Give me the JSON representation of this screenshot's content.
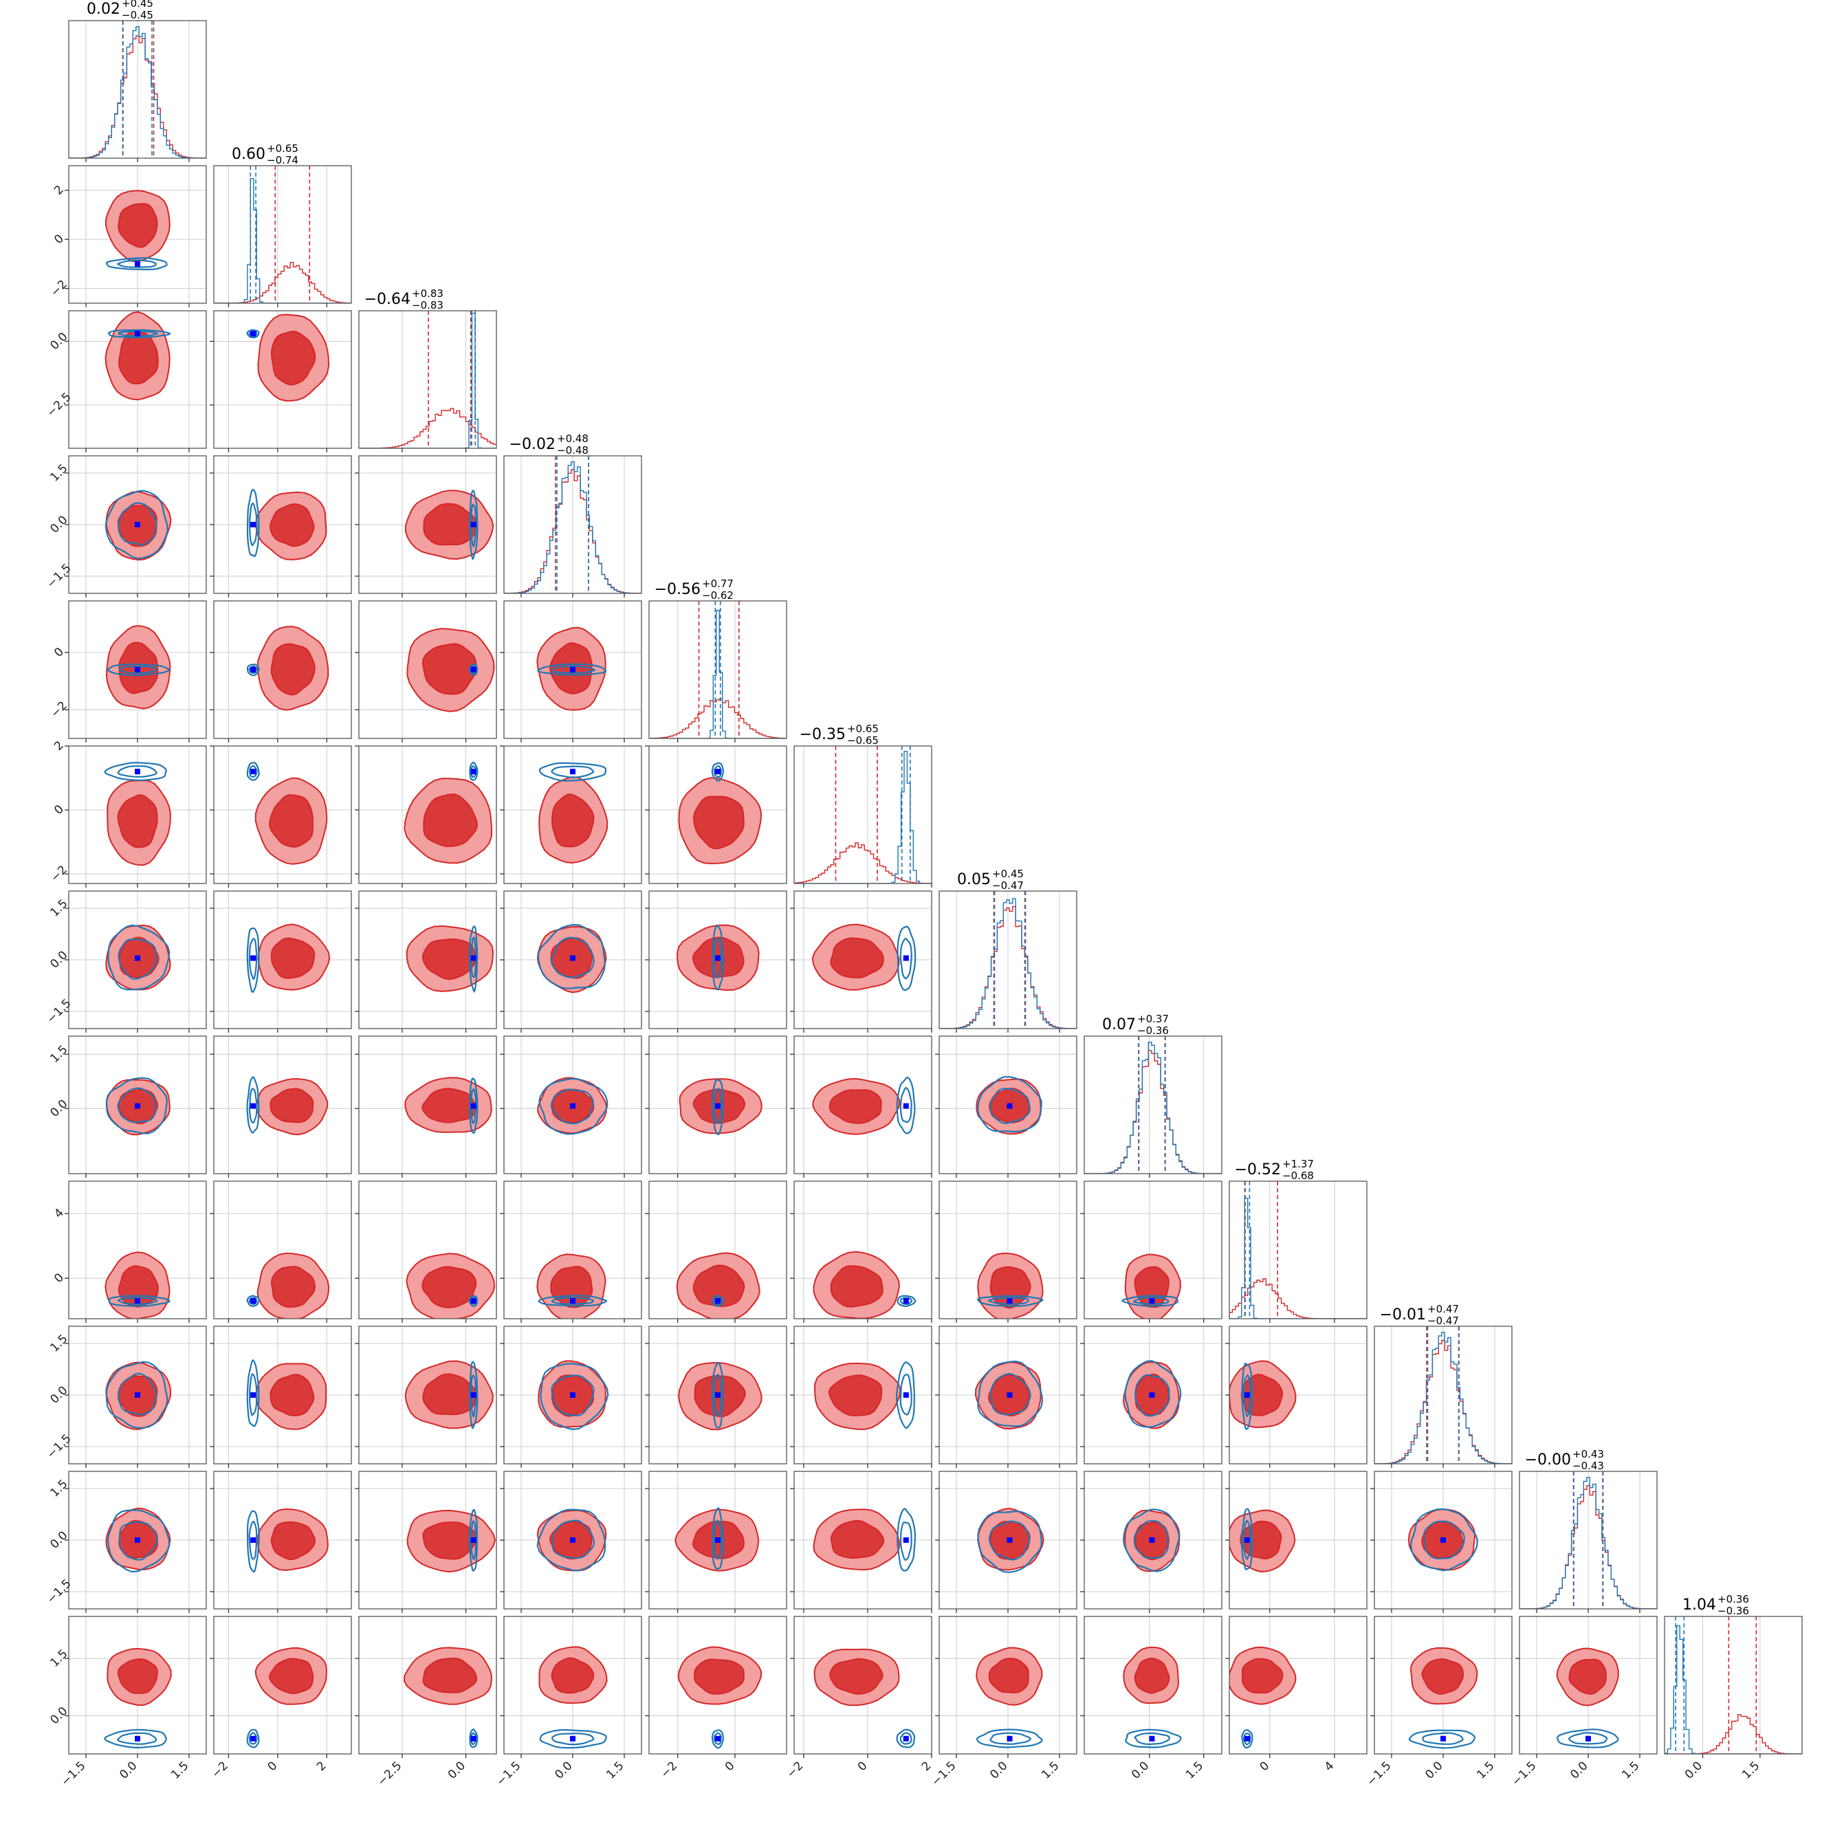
{
  "figure": {
    "type": "corner_plot",
    "n_parameters": 12
  },
  "chart_data": {
    "type": "corner",
    "series": [
      {
        "name": "",
        "color": "#d62728",
        "kind": "filled contours (broad posterior)"
      },
      {
        "name": "",
        "color": "#1f77b4",
        "kind": "line contours (narrow posterior)"
      }
    ],
    "truth_marker_color": "#0000ff",
    "grid": true,
    "parameters": [
      {
        "title": "0.02",
        "plus": "+0.45",
        "minus": "−0.45",
        "range": [
          -2.0,
          2.0
        ],
        "ticks": [
          -1.5,
          0.0,
          1.5
        ],
        "tick_labels": [
          "−1.5",
          "0.0",
          "1.5"
        ],
        "red": {
          "mean": 0.02,
          "sd": 0.45
        },
        "blue": {
          "mean": 0.0,
          "sd": 0.42
        }
      },
      {
        "title": "0.60",
        "plus": "+0.65",
        "minus": "−0.74",
        "range": [
          -2.6,
          3.0
        ],
        "ticks": [
          -2,
          0,
          2
        ],
        "tick_labels": [
          "−2",
          "0",
          "2"
        ],
        "red": {
          "mean": 0.6,
          "sd": 0.7
        },
        "blue": {
          "mean": -1.0,
          "sd": 0.11
        }
      },
      {
        "title": "−0.64",
        "plus": "+0.83",
        "minus": "−0.83",
        "range": [
          -4.2,
          1.2
        ],
        "ticks": [
          -2.5,
          0.0
        ],
        "tick_labels": [
          "−2.5",
          "0.0"
        ],
        "red": {
          "mean": -0.64,
          "sd": 0.83
        },
        "blue": {
          "mean": 0.3,
          "sd": 0.07
        }
      },
      {
        "title": "−0.02",
        "plus": "+0.48",
        "minus": "−0.48",
        "range": [
          -2.0,
          2.0
        ],
        "ticks": [
          -1.5,
          0.0,
          1.5
        ],
        "tick_labels": [
          "−1.5",
          "0.0",
          "1.5"
        ],
        "red": {
          "mean": -0.02,
          "sd": 0.48
        },
        "blue": {
          "mean": 0.0,
          "sd": 0.46
        }
      },
      {
        "title": "−0.56",
        "plus": "+0.77",
        "minus": "−0.62",
        "range": [
          -3.0,
          1.8
        ],
        "ticks": [
          -2,
          0
        ],
        "tick_labels": [
          "−2",
          "0"
        ],
        "red": {
          "mean": -0.56,
          "sd": 0.7
        },
        "blue": {
          "mean": -0.6,
          "sd": 0.09
        }
      },
      {
        "title": "−0.35",
        "plus": "+0.65",
        "minus": "−0.65",
        "range": [
          -2.3,
          2.0
        ],
        "ticks": [
          -2,
          0,
          2
        ],
        "tick_labels": [
          "−2",
          "0",
          "2"
        ],
        "red": {
          "mean": -0.35,
          "sd": 0.65
        },
        "blue": {
          "mean": 1.2,
          "sd": 0.13
        }
      },
      {
        "title": "0.05",
        "plus": "+0.45",
        "minus": "−0.47",
        "range": [
          -2.0,
          2.0
        ],
        "ticks": [
          -1.5,
          0.0,
          1.5
        ],
        "tick_labels": [
          "−1.5",
          "0.0",
          "1.5"
        ],
        "red": {
          "mean": 0.05,
          "sd": 0.46
        },
        "blue": {
          "mean": 0.05,
          "sd": 0.44
        }
      },
      {
        "title": "0.07",
        "plus": "+0.37",
        "minus": "−0.36",
        "range": [
          -1.8,
          2.0
        ],
        "ticks": [
          0.0,
          1.5
        ],
        "tick_labels": [
          "0.0",
          "1.5"
        ],
        "red": {
          "mean": 0.07,
          "sd": 0.37
        },
        "blue": {
          "mean": 0.07,
          "sd": 0.36
        }
      },
      {
        "title": "−0.52",
        "plus": "+1.37",
        "minus": "−0.68",
        "range": [
          -2.5,
          6.0
        ],
        "ticks": [
          0,
          4
        ],
        "tick_labels": [
          "0",
          "4"
        ],
        "red": {
          "mean": -0.52,
          "sd": 1.0
        },
        "blue": {
          "mean": -1.4,
          "sd": 0.15
        }
      },
      {
        "title": "−0.01",
        "plus": "+0.47",
        "minus": "−0.47",
        "range": [
          -2.0,
          2.0
        ],
        "ticks": [
          -1.5,
          0.0,
          1.5
        ],
        "tick_labels": [
          "−1.5",
          "0.0",
          "1.5"
        ],
        "red": {
          "mean": -0.01,
          "sd": 0.47
        },
        "blue": {
          "mean": 0.0,
          "sd": 0.45
        }
      },
      {
        "title": "−0.00",
        "plus": "+0.43",
        "minus": "−0.43",
        "range": [
          -2.0,
          2.0
        ],
        "ticks": [
          -1.5,
          0.0,
          1.5
        ],
        "tick_labels": [
          "−1.5",
          "0.0",
          "1.5"
        ],
        "red": {
          "mean": 0.0,
          "sd": 0.43
        },
        "blue": {
          "mean": 0.0,
          "sd": 0.42
        }
      },
      {
        "title": "1.04",
        "plus": "+0.36",
        "minus": "−0.36",
        "range": [
          -1.0,
          2.6
        ],
        "ticks": [
          0.0,
          1.5
        ],
        "tick_labels": [
          "0.0",
          "1.5"
        ],
        "red": {
          "mean": 1.04,
          "sd": 0.36
        },
        "blue": {
          "mean": -0.6,
          "sd": 0.11
        }
      }
    ]
  }
}
